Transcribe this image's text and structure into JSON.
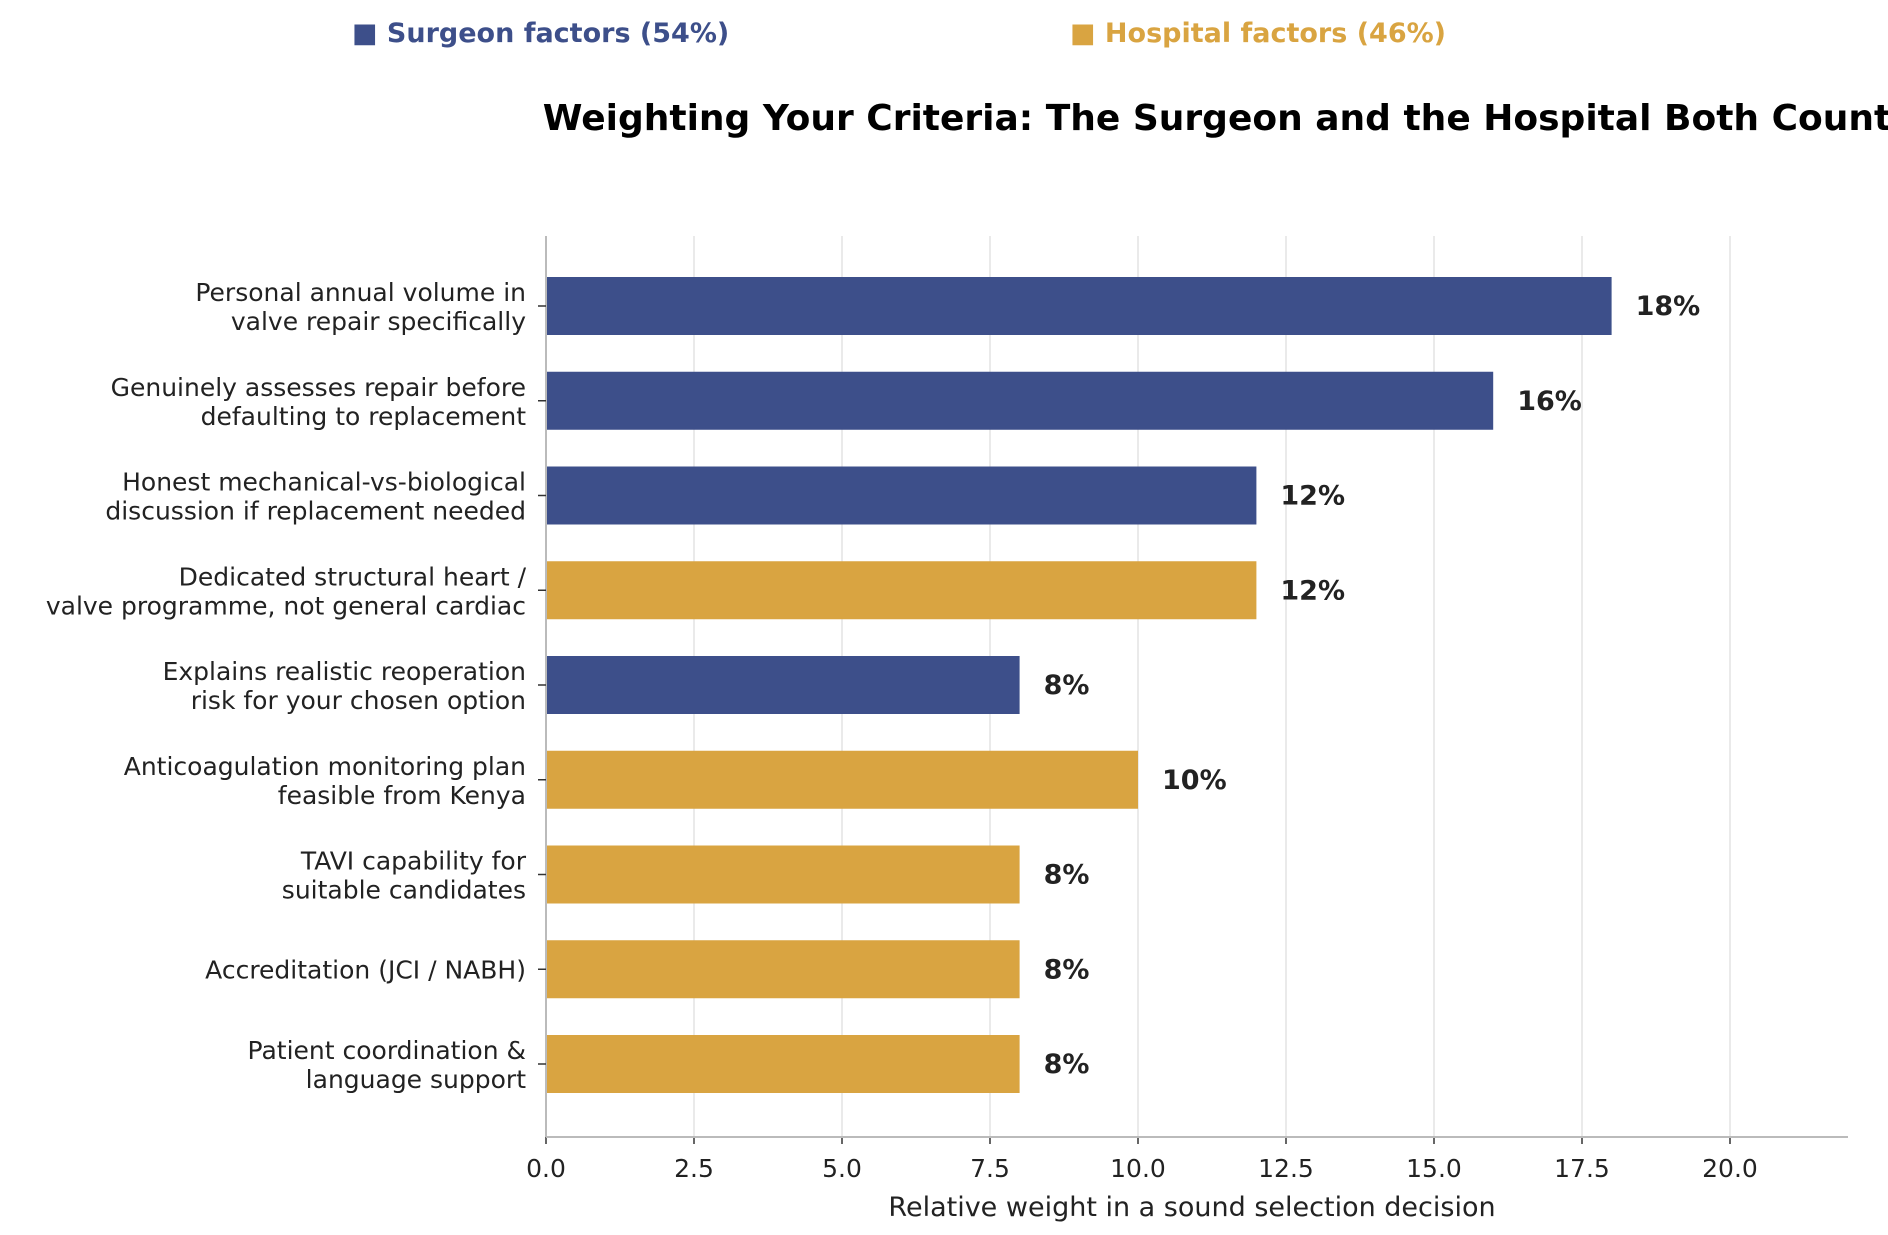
{
  "colors": {
    "surgeon": "#3d4f8a",
    "hospital": "#d9a441",
    "grid": "#e3e3e3",
    "axis": "#bbbbbb"
  },
  "legend": [
    {
      "key": "surgeon",
      "marker": "■",
      "label": "Surgeon factors (54%)"
    },
    {
      "key": "hospital",
      "marker": "■",
      "label": "Hospital factors (46%)"
    }
  ],
  "chart_data": {
    "type": "bar",
    "orientation": "horizontal",
    "title": "Weighting Your Criteria: The Surgeon and the Hospital Both Count",
    "xlabel": "Relative weight in a sound selection decision",
    "ylabel": "",
    "xlim": [
      0,
      22
    ],
    "xticks": [
      "0.0",
      "2.5",
      "5.0",
      "7.5",
      "10.0",
      "12.5",
      "15.0",
      "17.5",
      "20.0"
    ],
    "grid": "vertical",
    "legend_position": "top",
    "categories": [
      [
        "Personal annual volume in",
        "valve repair specifically"
      ],
      [
        "Genuinely assesses repair before",
        "defaulting to replacement"
      ],
      [
        "Honest mechanical-vs-biological",
        "discussion if replacement needed"
      ],
      [
        "Dedicated structural heart /",
        "valve programme, not general cardiac"
      ],
      [
        "Explains realistic reoperation",
        "risk for your chosen option"
      ],
      [
        "Anticoagulation monitoring plan",
        "feasible from Kenya"
      ],
      [
        "TAVI capability for",
        "suitable candidates"
      ],
      [
        "Accreditation (JCI / NABH)"
      ],
      [
        "Patient coordination &",
        "language support"
      ]
    ],
    "values": [
      18,
      16,
      12,
      12,
      8,
      10,
      8,
      8,
      8
    ],
    "value_labels": [
      "18%",
      "16%",
      "12%",
      "12%",
      "8%",
      "10%",
      "8%",
      "8%",
      "8%"
    ],
    "groups": [
      "surgeon",
      "surgeon",
      "surgeon",
      "hospital",
      "surgeon",
      "hospital",
      "hospital",
      "hospital",
      "hospital"
    ]
  }
}
